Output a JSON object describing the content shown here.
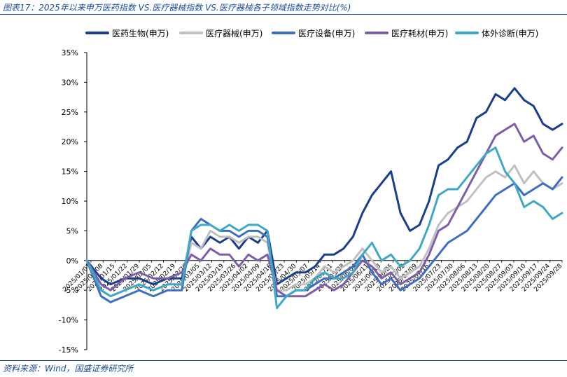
{
  "figure": {
    "title": "图表17：2025年以来申万医药指数 VS.医疗器械指数 VS.医疗器械各子领域指数走势对比(%)",
    "source": "资料来源：Wind，国盛证券研究所"
  },
  "chart_data": {
    "type": "line",
    "ylim": [
      -15,
      35
    ],
    "yticks": [
      -15,
      -10,
      -5,
      0,
      5,
      10,
      15,
      20,
      25,
      30,
      35
    ],
    "ytick_labels": [
      "-15%",
      "-10%",
      "-5%",
      "0%",
      "5%",
      "10%",
      "15%",
      "20%",
      "25%",
      "30%",
      "35%"
    ],
    "grid": false,
    "legend_position": "top",
    "x_tick_labels": [
      "2025/01/01",
      "2025/01/08",
      "2025/01/15",
      "2025/01/22",
      "2025/01/29",
      "2025/02/05",
      "2025/02/12",
      "2025/02/19",
      "2025/02/26",
      "2025/03/05",
      "2025/03/12",
      "2025/03/19",
      "2025/03/26",
      "2025/04/02",
      "2025/04/09",
      "2025/04/16",
      "2025/04/23",
      "2025/04/30",
      "2025/05/07",
      "2025/05/14",
      "2025/05/21",
      "2025/05/28",
      "2025/06/04",
      "2025/06/11",
      "2025/06/18",
      "2025/06/25",
      "2025/07/02",
      "2025/07/09",
      "2025/07/16",
      "2025/07/23",
      "2025/07/30",
      "2025/08/06",
      "2025/08/13",
      "2025/08/20",
      "2025/08/27",
      "2025/09/03",
      "2025/09/10",
      "2025/09/17",
      "2025/09/24",
      "2025/09/28"
    ],
    "x_range": [
      0,
      100
    ],
    "series": [
      {
        "name": "医药生物(申万)",
        "color": "#1a3e8c",
        "x": [
          0,
          3,
          5,
          8,
          11,
          14,
          17,
          20,
          22,
          24,
          26,
          28,
          30,
          32,
          34,
          36,
          38,
          40,
          42,
          44,
          46,
          48,
          50,
          52,
          54,
          56,
          58,
          60,
          62,
          64,
          66,
          68,
          70,
          72,
          74,
          76,
          78,
          80,
          82,
          84,
          86,
          88,
          90,
          92,
          94,
          96,
          98,
          100
        ],
        "y": [
          0,
          -3,
          -4,
          -3,
          -3,
          -4,
          -3,
          -3,
          4,
          2,
          4,
          3,
          4,
          2,
          4,
          3,
          5,
          -4,
          -3,
          -2,
          -2,
          -1,
          1,
          1,
          2,
          4,
          8,
          11,
          13,
          15,
          8,
          5,
          6,
          10,
          16,
          17,
          19,
          20,
          24,
          25,
          28,
          27,
          29,
          27,
          26,
          23,
          22,
          23
        ]
      },
      {
        "name": "医疗器械(申万)",
        "color": "#c0c0c0",
        "x": [
          0,
          3,
          5,
          8,
          11,
          14,
          17,
          20,
          22,
          24,
          26,
          28,
          30,
          32,
          34,
          36,
          38,
          40,
          42,
          44,
          46,
          48,
          50,
          52,
          54,
          56,
          58,
          60,
          62,
          64,
          66,
          68,
          70,
          72,
          74,
          76,
          78,
          80,
          82,
          84,
          86,
          88,
          90,
          92,
          94,
          96,
          98,
          100
        ],
        "y": [
          0,
          -5,
          -6,
          -5,
          -4,
          -5,
          -4,
          -4,
          3,
          2,
          5,
          4,
          4,
          3,
          4,
          4,
          3,
          -5,
          -5,
          -4,
          -4,
          -3,
          -1,
          -2,
          -1,
          0,
          2,
          0,
          -2,
          -1,
          -3,
          -2,
          -1,
          2,
          6,
          8,
          9,
          10,
          12,
          14,
          15,
          14,
          16,
          13,
          15,
          13,
          12,
          13
        ]
      },
      {
        "name": "医疗设备(申万)",
        "color": "#3d6fc0",
        "x": [
          0,
          3,
          5,
          8,
          11,
          14,
          17,
          20,
          22,
          24,
          26,
          28,
          30,
          32,
          34,
          36,
          38,
          40,
          42,
          44,
          46,
          48,
          50,
          52,
          54,
          56,
          58,
          60,
          62,
          64,
          66,
          68,
          70,
          72,
          74,
          76,
          78,
          80,
          82,
          84,
          86,
          88,
          90,
          92,
          94,
          96,
          98,
          100
        ],
        "y": [
          0,
          -6,
          -7,
          -6,
          -5,
          -6,
          -5,
          -5,
          5,
          7,
          6,
          5,
          5,
          4,
          5,
          5,
          4,
          -6,
          -6,
          -5,
          -5,
          -4,
          -3,
          -3,
          -2,
          -1,
          1,
          -2,
          -4,
          -3,
          -5,
          -4,
          -3,
          -1,
          1,
          3,
          4,
          5,
          7,
          9,
          11,
          12,
          13,
          11,
          12,
          13,
          12,
          14
        ]
      },
      {
        "name": "医疗耗材(申万)",
        "color": "#7f5ea8",
        "x": [
          0,
          3,
          5,
          8,
          11,
          14,
          17,
          20,
          22,
          24,
          26,
          28,
          30,
          32,
          34,
          36,
          38,
          40,
          42,
          44,
          46,
          48,
          50,
          52,
          54,
          56,
          58,
          60,
          62,
          64,
          66,
          68,
          70,
          72,
          74,
          76,
          78,
          80,
          82,
          84,
          86,
          88,
          90,
          92,
          94,
          96,
          98,
          100
        ],
        "y": [
          0,
          -4,
          -5,
          -3,
          -2,
          -3,
          -3,
          -2,
          1,
          0,
          2,
          1,
          1,
          -1,
          1,
          0,
          1,
          -5,
          -6,
          -6,
          -6,
          -5,
          -4,
          -5,
          -4,
          -2,
          0,
          -1,
          -3,
          -2,
          -4,
          -3,
          -2,
          1,
          5,
          6,
          9,
          12,
          15,
          18,
          21,
          22,
          23,
          20,
          21,
          18,
          17,
          19
        ]
      },
      {
        "name": "体外诊断(申万)",
        "color": "#3fa8c4",
        "x": [
          0,
          3,
          5,
          8,
          11,
          14,
          17,
          20,
          22,
          24,
          26,
          28,
          30,
          32,
          34,
          36,
          38,
          40,
          42,
          44,
          46,
          48,
          50,
          52,
          54,
          56,
          58,
          60,
          62,
          64,
          66,
          68,
          70,
          72,
          74,
          76,
          78,
          80,
          82,
          84,
          86,
          88,
          90,
          92,
          94,
          96,
          98,
          100
        ],
        "y": [
          0,
          -5,
          -6,
          -5,
          -4,
          -5,
          -4,
          -4,
          5,
          6,
          6,
          5,
          6,
          5,
          6,
          6,
          5,
          -8,
          -6,
          -5,
          -5,
          -3,
          -2,
          -3,
          -3,
          -2,
          1,
          3,
          0,
          1,
          -1,
          0,
          2,
          6,
          11,
          12,
          12,
          14,
          16,
          18,
          19,
          15,
          13,
          9,
          10,
          9,
          7,
          8
        ]
      }
    ]
  }
}
